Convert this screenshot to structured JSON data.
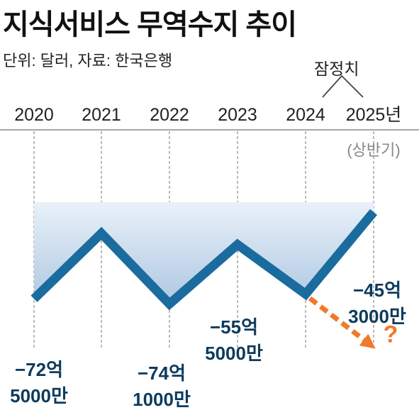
{
  "title": "지식서비스 무역수지 추이",
  "unit_note": "단위: 달러, 자료: 한국은행",
  "preliminary_note": "잠정치",
  "colors": {
    "line": "#1a6c9e",
    "projection": "#f07a2c",
    "area_top": "#e9f1f9",
    "area_bottom": "#aec8e2",
    "label": "#0d3a5c"
  },
  "chart_data": {
    "type": "line",
    "categories": [
      "2020",
      "2021",
      "2022",
      "2023",
      "2024",
      "2025년"
    ],
    "category_sub": [
      "",
      "",
      "",
      "",
      "",
      "(상반기)"
    ],
    "series": [
      {
        "values": [
          -72.5,
          -52,
          -74.1,
          -55.5,
          -71,
          -45.3
        ]
      }
    ],
    "data_labels": [
      {
        "index": 0,
        "lines": [
          "−72억",
          "5000만"
        ]
      },
      {
        "index": 2,
        "lines": [
          "−74억",
          "1000만"
        ]
      },
      {
        "index": 3,
        "lines": [
          "−55억",
          "5000만"
        ]
      },
      {
        "index": 5,
        "lines": [
          "−45억",
          "3000만"
        ]
      }
    ],
    "projection_marker": "?",
    "ylabel": "",
    "ylim": [
      -90,
      -20
    ],
    "grid": true,
    "legend": false
  }
}
